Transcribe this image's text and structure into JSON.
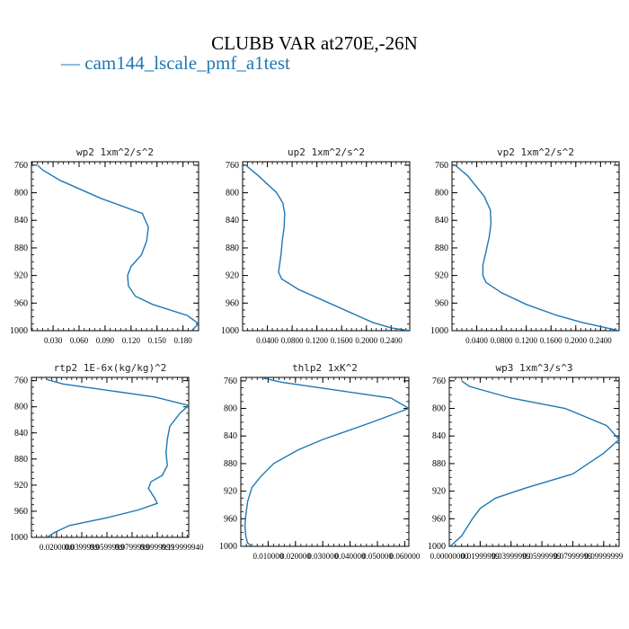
{
  "figure": {
    "title": "CLUBB VAR at270E,-26N",
    "legend_label": "— cam144_lscale_pmf_a1test",
    "series_color": "#1f77b4"
  },
  "chart_data": [
    {
      "type": "line",
      "title": "wp2   1xm^2/s^2",
      "xlim": [
        0.005,
        0.198
      ],
      "ylim": [
        1000,
        755
      ],
      "y_inverted": true,
      "xticks": [
        0.03,
        0.06,
        0.09,
        0.12,
        0.15,
        0.18
      ],
      "xtick_labels": [
        "0.030",
        "0.060",
        "0.090",
        "0.120",
        "0.150",
        "0.180"
      ],
      "yticks": [
        760,
        800,
        840,
        880,
        920,
        960,
        1000
      ],
      "series": [
        {
          "x": [
            0.012,
            0.018,
            0.038,
            0.085,
            0.133,
            0.14,
            0.138,
            0.132,
            0.12,
            0.116,
            0.117,
            0.125,
            0.145,
            0.185,
            0.198,
            0.19
          ],
          "y": [
            760,
            767,
            782,
            808,
            830,
            850,
            870,
            890,
            907,
            920,
            935,
            950,
            962,
            978,
            990,
            1000
          ]
        }
      ]
    },
    {
      "type": "line",
      "title": "up2   1xm^2/s^2",
      "xlim": [
        0.0,
        0.27
      ],
      "ylim": [
        1000,
        755
      ],
      "y_inverted": true,
      "xticks": [
        0.04,
        0.08,
        0.12,
        0.16,
        0.2,
        0.24
      ],
      "xtick_labels": [
        "0.0400",
        "0.0800",
        "0.1200",
        "0.1600",
        "0.2000",
        "0.2400"
      ],
      "yticks": [
        760,
        800,
        840,
        880,
        920,
        960,
        1000
      ],
      "series": [
        {
          "x": [
            0.005,
            0.025,
            0.055,
            0.065,
            0.068,
            0.067,
            0.064,
            0.062,
            0.058,
            0.063,
            0.09,
            0.14,
            0.185,
            0.21,
            0.24,
            0.27
          ],
          "y": [
            760,
            775,
            800,
            815,
            830,
            850,
            870,
            890,
            915,
            925,
            940,
            960,
            978,
            988,
            996,
            1000
          ]
        }
      ]
    },
    {
      "type": "line",
      "title": "vp2   1xm^2/s^2",
      "xlim": [
        0.0,
        0.27
      ],
      "ylim": [
        1000,
        755
      ],
      "y_inverted": true,
      "xticks": [
        0.04,
        0.08,
        0.12,
        0.16,
        0.2,
        0.24
      ],
      "xtick_labels": [
        "0.0400",
        "0.0800",
        "0.1200",
        "0.1600",
        "0.2000",
        "0.2400"
      ],
      "yticks": [
        760,
        800,
        840,
        880,
        920,
        960,
        1000
      ],
      "series": [
        {
          "x": [
            0.005,
            0.025,
            0.052,
            0.062,
            0.063,
            0.06,
            0.055,
            0.05,
            0.05,
            0.055,
            0.08,
            0.12,
            0.17,
            0.21,
            0.25,
            0.27
          ],
          "y": [
            760,
            775,
            805,
            825,
            845,
            865,
            885,
            905,
            920,
            930,
            945,
            962,
            978,
            988,
            996,
            1000
          ]
        }
      ]
    },
    {
      "type": "line",
      "title": "rtp2   1E-6x(kg/kg)^2",
      "xlim": [
        0.0,
        0.125
      ],
      "ylim": [
        1000,
        755
      ],
      "y_inverted": true,
      "xticks": [
        0.02,
        0.04,
        0.06,
        0.08,
        0.1,
        0.12
      ],
      "xtick_labels": [
        "0.0200000",
        "0.0399999",
        "0.0599999",
        "0.0799999",
        "0.0999999",
        "0.119999940"
      ],
      "yticks": [
        760,
        800,
        840,
        880,
        920,
        960,
        1000
      ],
      "series": [
        {
          "x": [
            0.012,
            0.025,
            0.098,
            0.125,
            0.118,
            0.11,
            0.108,
            0.107,
            0.108,
            0.104,
            0.095,
            0.093,
            0.098,
            0.1,
            0.085,
            0.06,
            0.03,
            0.018,
            0.015,
            0.012
          ],
          "y": [
            758,
            765,
            785,
            798,
            810,
            830,
            850,
            870,
            890,
            905,
            915,
            925,
            940,
            948,
            958,
            970,
            982,
            993,
            997,
            1000
          ]
        }
      ]
    },
    {
      "type": "line",
      "title": "thlp2   1xK^2",
      "xlim": [
        0.0,
        0.0615
      ],
      "ylim": [
        1000,
        755
      ],
      "y_inverted": true,
      "xticks": [
        0.01,
        0.02,
        0.03,
        0.04,
        0.05,
        0.06
      ],
      "xtick_labels": [
        "0.010000",
        "0.020000",
        "0.030000",
        "0.040000",
        "0.050000",
        "0.060000"
      ],
      "yticks": [
        760,
        800,
        840,
        880,
        920,
        960,
        1000
      ],
      "series": [
        {
          "x": [
            0.007,
            0.015,
            0.055,
            0.0615,
            0.048,
            0.03,
            0.021,
            0.012,
            0.007,
            0.004,
            0.0025,
            0.0018,
            0.0015,
            0.0018,
            0.0025,
            0.004
          ],
          "y": [
            755,
            762,
            785,
            800,
            820,
            845,
            860,
            880,
            900,
            915,
            935,
            955,
            970,
            985,
            995,
            1000
          ]
        }
      ]
    },
    {
      "type": "line",
      "title": "wp3   1xm^3/s^3",
      "xlim": [
        0.0,
        0.11
      ],
      "ylim": [
        1000,
        755
      ],
      "y_inverted": true,
      "xticks": [
        0.0,
        0.02,
        0.04,
        0.06,
        0.08,
        0.1
      ],
      "xtick_labels": [
        "0.00000000",
        "0.01999999",
        "0.03999999",
        "0.05999999",
        "0.07999999",
        "0.09999999"
      ],
      "yticks": [
        760,
        800,
        840,
        880,
        920,
        960,
        1000
      ],
      "series": [
        {
          "x": [
            0.008,
            0.013,
            0.04,
            0.075,
            0.102,
            0.11,
            0.1,
            0.08,
            0.05,
            0.03,
            0.02,
            0.015,
            0.008,
            0.0005
          ],
          "y": [
            760,
            768,
            785,
            800,
            825,
            845,
            865,
            895,
            915,
            930,
            945,
            960,
            985,
            1000
          ]
        }
      ]
    }
  ]
}
